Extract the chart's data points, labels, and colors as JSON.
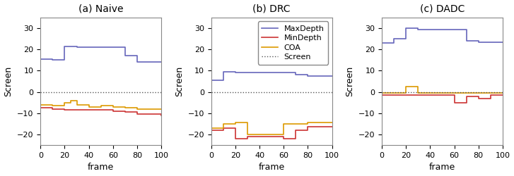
{
  "titles": [
    "(a) Naive",
    "(b) DRC",
    "(c) DADC"
  ],
  "xlabel": "frame",
  "ylabel": "Screen",
  "xlim": [
    0,
    100
  ],
  "ylim": [
    -25,
    35
  ],
  "colors": {
    "MaxDepth": "#6666bb",
    "MinDepth": "#cc3333",
    "COA": "#dd9900",
    "Screen": "#555555"
  },
  "naive": {
    "MaxDepth": {
      "x": [
        0,
        10,
        20,
        30,
        70,
        80,
        100
      ],
      "y": [
        15.5,
        15.0,
        21.5,
        21.0,
        17.0,
        14.0,
        14.0
      ]
    },
    "MinDepth": {
      "x": [
        0,
        10,
        20,
        30,
        60,
        70,
        80,
        100
      ],
      "y": [
        -7.5,
        -8.0,
        -8.5,
        -8.5,
        -9.0,
        -9.5,
        -10.5,
        -11.0
      ]
    },
    "COA": {
      "x": [
        0,
        10,
        20,
        25,
        30,
        40,
        50,
        60,
        70,
        80,
        100
      ],
      "y": [
        -6.0,
        -6.5,
        -5.0,
        -4.0,
        -6.0,
        -7.0,
        -6.5,
        -7.0,
        -7.5,
        -8.0,
        -8.0
      ]
    }
  },
  "drc": {
    "MaxDepth": {
      "x": [
        0,
        10,
        20,
        70,
        80,
        100
      ],
      "y": [
        5.5,
        9.5,
        9.0,
        8.0,
        7.5,
        7.5
      ]
    },
    "MinDepth": {
      "x": [
        0,
        10,
        20,
        30,
        60,
        70,
        80,
        100
      ],
      "y": [
        -18.0,
        -17.0,
        -22.0,
        -21.0,
        -22.0,
        -18.0,
        -16.5,
        -16.5
      ]
    },
    "COA": {
      "x": [
        0,
        10,
        20,
        30,
        60,
        80,
        100
      ],
      "y": [
        -17.0,
        -15.0,
        -14.5,
        -20.0,
        -15.0,
        -14.5,
        -14.5
      ]
    }
  },
  "dadc": {
    "MaxDepth": {
      "x": [
        0,
        10,
        20,
        30,
        70,
        80,
        100
      ],
      "y": [
        23.0,
        25.0,
        30.0,
        29.5,
        24.0,
        23.5,
        23.5
      ]
    },
    "MinDepth": {
      "x": [
        0,
        60,
        70,
        80,
        90,
        100
      ],
      "y": [
        -1.5,
        -5.0,
        -2.0,
        -3.0,
        -1.5,
        -1.5
      ]
    },
    "COA": {
      "x": [
        0,
        20,
        30,
        100
      ],
      "y": [
        -0.5,
        2.5,
        -0.5,
        -0.5
      ]
    }
  },
  "figsize": [
    7.27,
    2.5
  ],
  "dpi": 100,
  "bg_color": "#ffffff",
  "ax_bg_color": "#ffffff",
  "tick_fontsize": 8,
  "label_fontsize": 9,
  "title_fontsize": 10,
  "legend_fontsize": 8,
  "linewidth": 1.2,
  "screen_linewidth": 1.0,
  "yticks": [
    -20,
    -10,
    0,
    10,
    20,
    30
  ]
}
